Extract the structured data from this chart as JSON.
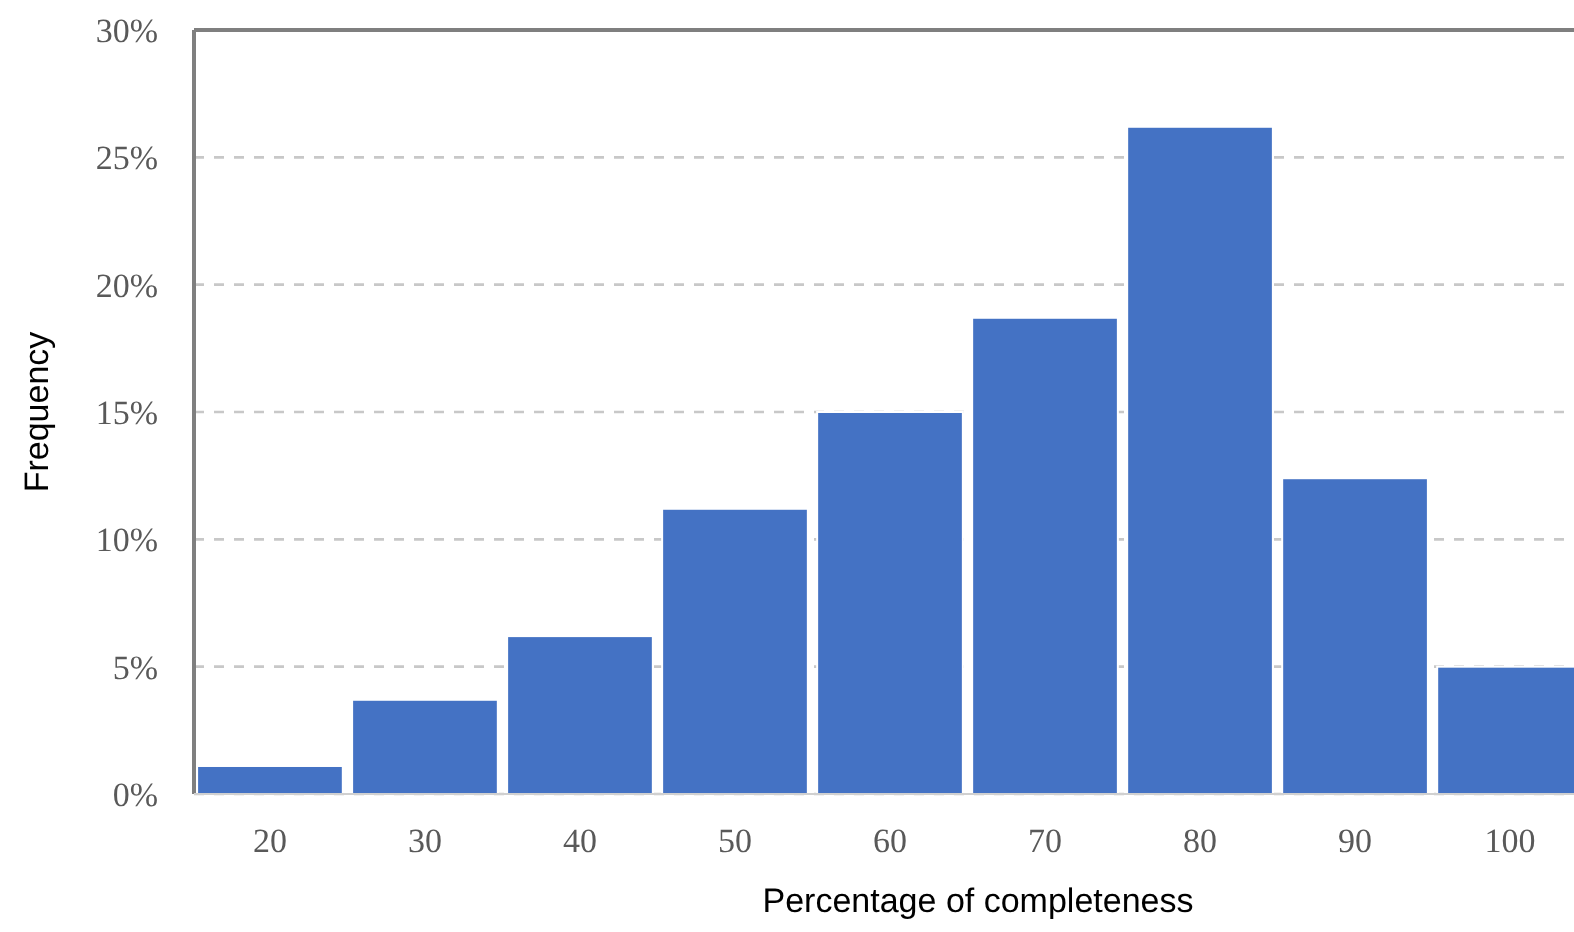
{
  "chart_data": {
    "type": "bar",
    "xlabel": "Percentage of completeness",
    "ylabel": "Frequency",
    "categories": [
      "20",
      "30",
      "40",
      "50",
      "60",
      "70",
      "80",
      "90",
      "100"
    ],
    "values": [
      1.1,
      3.7,
      6.2,
      11.2,
      15.0,
      18.7,
      26.2,
      12.4,
      5.0
    ],
    "color": "#4472c4",
    "ylim": [
      0,
      30
    ],
    "yticks": [
      {
        "value": 0,
        "label": "0%"
      },
      {
        "value": 5,
        "label": "5%"
      },
      {
        "value": 10,
        "label": "10%"
      },
      {
        "value": 15,
        "label": "15%"
      },
      {
        "value": 20,
        "label": "20%"
      },
      {
        "value": 25,
        "label": "25%"
      },
      {
        "value": 30,
        "label": "30%"
      }
    ],
    "grid": "y"
  }
}
